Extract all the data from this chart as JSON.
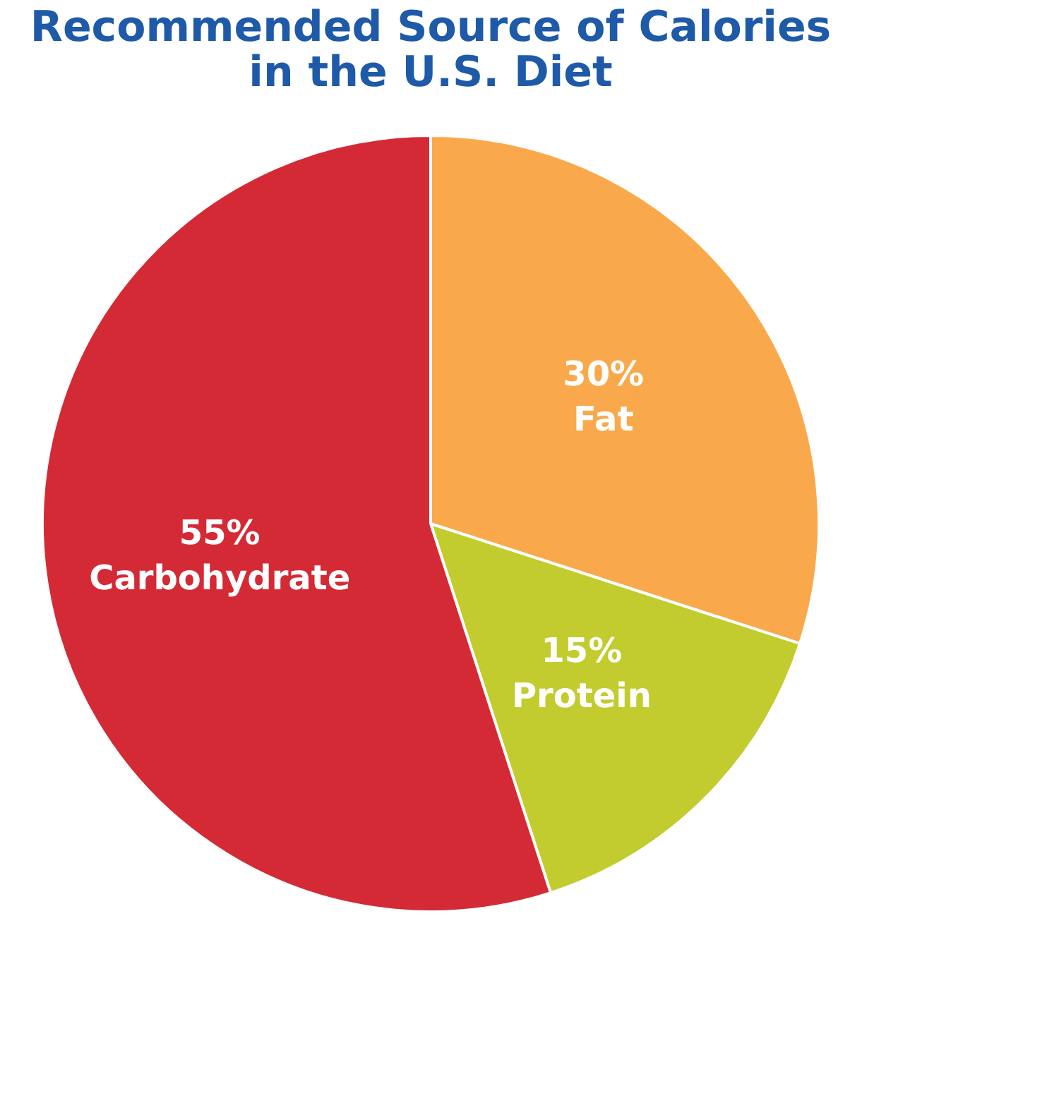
{
  "chart_data": {
    "type": "pie",
    "title": "Recommended Source of Calories\nin the U.S. Diet",
    "categories": [
      "Fat",
      "Protein",
      "Carbohydrate"
    ],
    "values": [
      30,
      15,
      55
    ],
    "colors": [
      "#f9a94b",
      "#c2cc2e",
      "#d42a35"
    ],
    "value_labels": [
      "30%",
      "15%",
      "55%"
    ]
  }
}
